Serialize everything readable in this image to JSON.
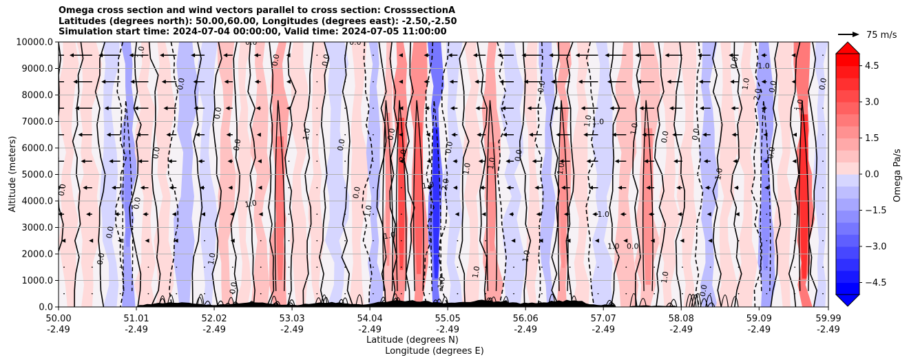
{
  "chart_data": {
    "type": "heatmap",
    "title_lines": [
      "Omega cross section and wind vectors parallel to cross section: CrosssectionA",
      "Latitudes (degrees north): 50.00,60.00, Longitudes (degrees east): -2.50,-2.50",
      "Simulation start time: 2024-07-04 00:00:00, Valid time: 2024-07-05 11:00:00"
    ],
    "ylabel": "Altitude (meters)",
    "xlabel_line1": "Latitude (degrees N)",
    "xlabel_line2": "Longitude (degrees E)",
    "x_range": [
      50.0,
      59.99
    ],
    "y_range": [
      0,
      10000
    ],
    "y_ticks": [
      0,
      1000,
      2000,
      3000,
      4000,
      5000,
      6000,
      7000,
      8000,
      9000,
      10000
    ],
    "y_tick_labels": [
      "0.0",
      "1000.0",
      "2000.0",
      "3000.0",
      "4000.0",
      "5000.0",
      "6000.0",
      "7000.0",
      "8000.0",
      "9000.0",
      "10000.0"
    ],
    "x_ticks": [
      50.0,
      51.01,
      52.02,
      53.03,
      54.04,
      55.05,
      56.06,
      57.07,
      58.08,
      59.09,
      59.99
    ],
    "x_tick_labels_lat": [
      "50.00",
      "51.01",
      "52.02",
      "53.03",
      "54.04",
      "55.05",
      "56.06",
      "57.07",
      "58.08",
      "59.09",
      "59.99"
    ],
    "x_tick_labels_lon": [
      "-2.49",
      "-2.49",
      "-2.49",
      "-2.49",
      "-2.49",
      "-2.49",
      "-2.49",
      "-2.49",
      "-2.49",
      "-2.49",
      "-2.49"
    ],
    "grid": true,
    "colorbar": {
      "label": "Omega Pa/s",
      "range": [
        -5.0,
        5.0
      ],
      "ticks": [
        4.5,
        3.0,
        1.5,
        0.0,
        -1.5,
        -3.0,
        -4.5
      ],
      "tick_labels": [
        "4.5",
        "3.0",
        "1.5",
        "0.0",
        "−1.5",
        "−3.0",
        "−4.5"
      ],
      "step": 0.5,
      "extend": "both"
    },
    "quiver_key": "75 m/s",
    "bands": [
      {
        "x": 50.0,
        "v": 0.1
      },
      {
        "x": 50.25,
        "v": 0.4
      },
      {
        "x": 50.55,
        "v": -0.3
      },
      {
        "x": 50.8,
        "v": -1.2
      },
      {
        "x": 51.0,
        "v": 0.2
      },
      {
        "x": 51.25,
        "v": 0.3
      },
      {
        "x": 51.5,
        "v": -0.6
      },
      {
        "x": 51.8,
        "v": -0.4
      },
      {
        "x": 52.05,
        "v": 0.9
      },
      {
        "x": 52.3,
        "v": 0.3
      },
      {
        "x": 52.5,
        "v": 0.6
      },
      {
        "x": 52.75,
        "v": 1.3
      },
      {
        "x": 53.0,
        "v": 0.2
      },
      {
        "x": 53.25,
        "v": 0.4
      },
      {
        "x": 53.45,
        "v": -0.4
      },
      {
        "x": 53.75,
        "v": 0.3
      },
      {
        "x": 54.0,
        "v": -0.6
      },
      {
        "x": 54.2,
        "v": 1.0
      },
      {
        "x": 54.35,
        "v": 2.0
      },
      {
        "x": 54.55,
        "v": 1.6
      },
      {
        "x": 54.8,
        "v": -2.3
      },
      {
        "x": 55.0,
        "v": -0.5
      },
      {
        "x": 55.25,
        "v": 0.5
      },
      {
        "x": 55.5,
        "v": 1.2
      },
      {
        "x": 55.75,
        "v": -0.5
      },
      {
        "x": 56.05,
        "v": 0.4
      },
      {
        "x": 56.25,
        "v": -0.6
      },
      {
        "x": 56.45,
        "v": 1.2
      },
      {
        "x": 56.65,
        "v": 0.3
      },
      {
        "x": 56.9,
        "v": -0.5
      },
      {
        "x": 57.2,
        "v": 0.6
      },
      {
        "x": 57.5,
        "v": 1.0
      },
      {
        "x": 57.8,
        "v": 0.2
      },
      {
        "x": 58.05,
        "v": 0.3
      },
      {
        "x": 58.3,
        "v": -0.9
      },
      {
        "x": 58.55,
        "v": 0.4
      },
      {
        "x": 58.8,
        "v": 0.1
      },
      {
        "x": 59.05,
        "v": -1.1
      },
      {
        "x": 59.3,
        "v": 0.4
      },
      {
        "x": 59.55,
        "v": 2.2
      },
      {
        "x": 59.8,
        "v": -0.2
      }
    ],
    "contour_labels": [
      {
        "text": "0.0",
        "x": 50.08,
        "y": 4400,
        "rot": -80
      },
      {
        "text": "0.0",
        "x": 50.7,
        "y": 2800,
        "rot": -80
      },
      {
        "text": "0.0",
        "x": 50.58,
        "y": 1800,
        "rot": -80
      },
      {
        "text": "1.0",
        "x": 51.1,
        "y": 9600,
        "rot": -80
      },
      {
        "text": "0.0",
        "x": 51.05,
        "y": 3900,
        "rot": -80
      },
      {
        "text": "0.0",
        "x": 51.3,
        "y": 5800,
        "rot": -80
      },
      {
        "text": "0.0",
        "x": 51.62,
        "y": 8400,
        "rot": -80
      },
      {
        "text": "1.0",
        "x": 52.02,
        "y": 1800,
        "rot": -80
      },
      {
        "text": "0.0",
        "x": 52.1,
        "y": 7300,
        "rot": -80
      },
      {
        "text": "0.0",
        "x": 52.35,
        "y": 6100,
        "rot": -80
      },
      {
        "text": "1.0",
        "x": 52.5,
        "y": 3800,
        "rot": -10
      },
      {
        "text": "0.0",
        "x": 52.85,
        "y": 9300,
        "rot": -80
      },
      {
        "text": "1.0",
        "x": 53.25,
        "y": 6500,
        "rot": -80
      },
      {
        "text": "0.0",
        "x": 53.5,
        "y": 9300,
        "rot": -80
      },
      {
        "text": "0.0",
        "x": 53.7,
        "y": 6100,
        "rot": -80
      },
      {
        "text": "0.0",
        "x": 53.9,
        "y": 4300,
        "rot": -80
      },
      {
        "text": "1.0",
        "x": 54.05,
        "y": 3600,
        "rot": -80
      },
      {
        "text": "1.0",
        "x": 54.3,
        "y": 2600,
        "rot": -10
      },
      {
        "text": "0.0",
        "x": 54.35,
        "y": 6500,
        "rot": -80
      },
      {
        "text": "2.0",
        "x": 54.5,
        "y": 5700,
        "rot": -80
      },
      {
        "text": "1.0",
        "x": 54.8,
        "y": 4500,
        "rot": -10
      },
      {
        "text": "2.0",
        "x": 55.05,
        "y": 4600,
        "rot": -80
      },
      {
        "text": "1.0",
        "x": 55.33,
        "y": 5200,
        "rot": -80
      },
      {
        "text": "0.0",
        "x": 55.1,
        "y": 6000,
        "rot": -80
      },
      {
        "text": "1.0",
        "x": 55.45,
        "y": 1300,
        "rot": -80
      },
      {
        "text": "1.0",
        "x": 55.65,
        "y": 5400,
        "rot": -80
      },
      {
        "text": "0.0",
        "x": 56.0,
        "y": 5700,
        "rot": -80
      },
      {
        "text": "1.0",
        "x": 56.1,
        "y": 1900,
        "rot": -80
      },
      {
        "text": "0.0",
        "x": 56.3,
        "y": 8300,
        "rot": -80
      },
      {
        "text": "1.0",
        "x": 56.55,
        "y": 5200,
        "rot": -80
      },
      {
        "text": "1.0",
        "x": 56.9,
        "y": 7000,
        "rot": -80
      },
      {
        "text": "1.0",
        "x": 57.0,
        "y": 6900,
        "rot": 0
      },
      {
        "text": "1.0",
        "x": 57.07,
        "y": 3400,
        "rot": 0
      },
      {
        "text": "1.0",
        "x": 57.2,
        "y": 2200,
        "rot": 0
      },
      {
        "text": "0.0",
        "x": 57.45,
        "y": 2200,
        "rot": 0
      },
      {
        "text": "1.0",
        "x": 57.5,
        "y": 6700,
        "rot": -80
      },
      {
        "text": "0.0",
        "x": 57.9,
        "y": 6400,
        "rot": -80
      },
      {
        "text": "0.0",
        "x": 58.3,
        "y": 6500,
        "rot": -80
      },
      {
        "text": "1.0",
        "x": 58.6,
        "y": 5000,
        "rot": -80
      },
      {
        "text": "0.0",
        "x": 58.8,
        "y": 9200,
        "rot": -80
      },
      {
        "text": "1.0",
        "x": 58.95,
        "y": 8400,
        "rot": -80
      },
      {
        "text": "1.0",
        "x": 59.15,
        "y": 9000,
        "rot": 0
      },
      {
        "text": "2.0",
        "x": 59.1,
        "y": 8000,
        "rot": -80
      },
      {
        "text": "0.0",
        "x": 59.3,
        "y": 8300,
        "rot": -80
      },
      {
        "text": "0.0",
        "x": 59.28,
        "y": 5800,
        "rot": -80
      },
      {
        "text": "1.0",
        "x": 59.65,
        "y": 7600,
        "rot": -80
      },
      {
        "text": "0.0",
        "x": 59.95,
        "y": 8400,
        "rot": -80
      },
      {
        "text": "0.0",
        "x": 52.5,
        "y": 9900,
        "rot": 0
      },
      {
        "text": "0.0",
        "x": 53.85,
        "y": 9900,
        "rot": 0
      },
      {
        "text": "1.0",
        "x": 57.9,
        "y": 1100,
        "rot": -80
      },
      {
        "text": "0.0",
        "x": 58.4,
        "y": 600,
        "rot": -80
      },
      {
        "text": "1.0",
        "x": 55.0,
        "y": 900,
        "rot": -80
      },
      {
        "text": "0.0",
        "x": 52.3,
        "y": 700,
        "rot": -80
      }
    ]
  }
}
